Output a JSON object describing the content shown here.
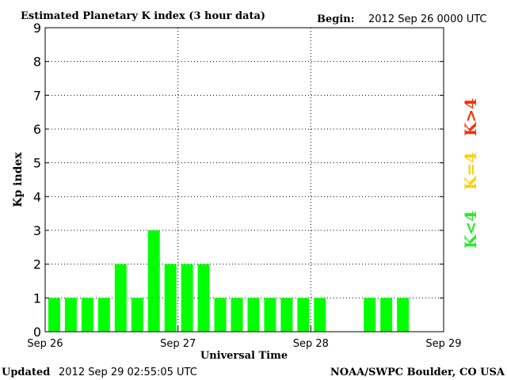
{
  "header": {
    "title": "Estimated Planetary K index (3 hour data)",
    "begin_label": "Begin:",
    "begin_value": "2012 Sep 26 0000 UTC"
  },
  "footer": {
    "updated_label": "Updated",
    "updated_value": "2012 Sep 29 02:55:05 UTC",
    "source": "NOAA/SWPC Boulder, CO USA"
  },
  "legend": {
    "items": [
      {
        "label": "K>4",
        "color": "#ff2a00"
      },
      {
        "label": "K=4",
        "color": "#ffd000"
      },
      {
        "label": "K<4",
        "color": "#22ee22"
      }
    ]
  },
  "colors": {
    "bar": "#00ff00",
    "axis": "#000000",
    "grid": "#000000"
  },
  "chart_data": {
    "type": "bar",
    "title": "Estimated Planetary K index (3 hour data)",
    "xlabel": "Universal Time",
    "ylabel": "Kp index",
    "ylim": [
      0,
      9
    ],
    "yticks": [
      "0",
      "1",
      "2",
      "3",
      "4",
      "5",
      "6",
      "7",
      "8",
      "9"
    ],
    "xticks": [
      "Sep 26",
      "Sep 27",
      "Sep 28",
      "Sep 29"
    ],
    "grid": true,
    "interval_hours": 3,
    "values": [
      1,
      1,
      1,
      1,
      2,
      1,
      3,
      2,
      2,
      2,
      1,
      1,
      1,
      1,
      1,
      1,
      1,
      null,
      null,
      1,
      1,
      1,
      null,
      null
    ]
  }
}
